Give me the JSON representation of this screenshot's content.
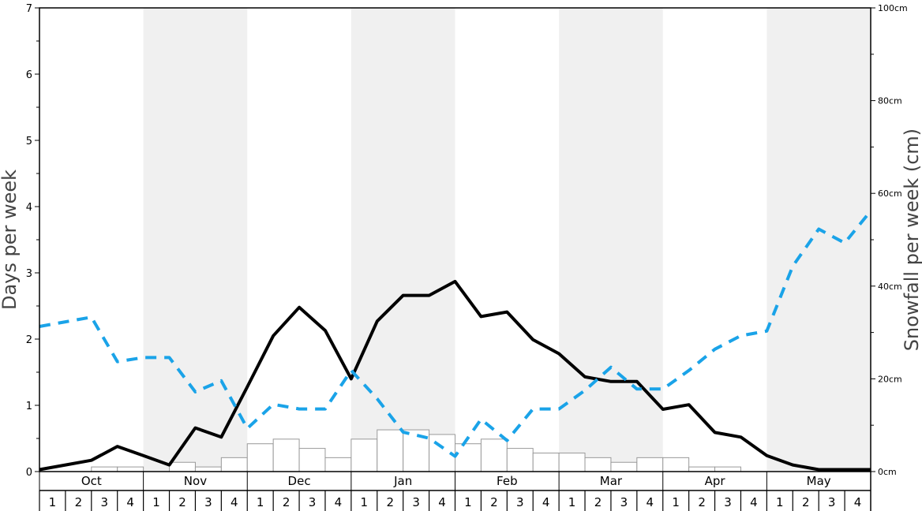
{
  "chart_data": {
    "type": "line",
    "title": "",
    "ylabel_left": "Days per week",
    "ylabel_right": "Snowfall per week (cm)",
    "ylim_left": [
      0,
      7
    ],
    "ylim_right": [
      0,
      100
    ],
    "yticks_left": [
      "0",
      "1",
      "2",
      "3",
      "4",
      "5",
      "6",
      "7"
    ],
    "yticks_right": [
      "0cm",
      "20cm",
      "40cm",
      "60cm",
      "80cm",
      "100cm"
    ],
    "months": [
      "Oct",
      "Nov",
      "Dec",
      "Jan",
      "Feb",
      "Mar",
      "Apr",
      "May"
    ],
    "weeks": [
      "1",
      "2",
      "3",
      "4"
    ],
    "grid": false,
    "alternate_month_shading": true,
    "series": [
      {
        "style": "solid-black",
        "axis": "left",
        "values": [
          0.03,
          0.1,
          0.17,
          0.38,
          0.24,
          0.1,
          0.66,
          0.52,
          1.28,
          2.05,
          2.48,
          2.13,
          1.4,
          2.27,
          2.66,
          2.66,
          2.87,
          2.34,
          2.41,
          1.99,
          1.78,
          1.43,
          1.36,
          1.36,
          0.94,
          1.01,
          0.59,
          0.52,
          0.24,
          0.1,
          0.03,
          0.03,
          0.03
        ]
      },
      {
        "style": "dashed-blue",
        "axis": "right",
        "values": [
          31.3,
          32.3,
          33.3,
          23.7,
          24.6,
          24.6,
          17.2,
          19.6,
          9.3,
          14.5,
          13.5,
          13.5,
          21.8,
          15.7,
          8.5,
          7.2,
          3.3,
          11.3,
          6.7,
          13.5,
          13.5,
          17.5,
          22.5,
          17.8,
          17.8,
          21.8,
          26.4,
          29.3,
          30.3,
          44.3,
          52.3,
          49.3,
          56.2
        ]
      },
      {
        "style": "bars",
        "axis": "right",
        "values": [
          0,
          0,
          1.0,
          1.0,
          0,
          2.0,
          1.0,
          3.0,
          6.0,
          7.0,
          5.0,
          3.0,
          7.0,
          9.0,
          9.0,
          8.0,
          6.0,
          7.0,
          5.0,
          4.0,
          4.0,
          3.0,
          2.0,
          3.0,
          3.0,
          1.0,
          1.0,
          0,
          0,
          0,
          0,
          0
        ]
      }
    ]
  }
}
